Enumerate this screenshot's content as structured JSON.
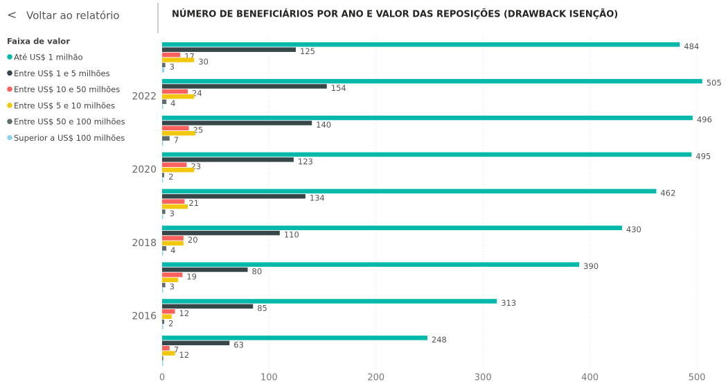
{
  "back_link": "Voltar ao relatório",
  "chart_data": {
    "type": "hbar",
    "title": "NÚMERO DE BENEFICIÁRIOS POR ANO E VALOR DAS REPOSIÇÕES (DRAWBACK ISENÇÃO)",
    "legend_title": "Faixa de valor",
    "legend": "left",
    "categories": [
      null,
      "2022",
      null,
      "2020",
      null,
      "2018",
      null,
      "2016",
      null
    ],
    "series": [
      {
        "name": "Até US$ 1 milhão",
        "color": "#01b8aa",
        "values": [
          484,
          505,
          496,
          495,
          462,
          430,
          390,
          313,
          248
        ]
      },
      {
        "name": "Entre US$ 1 e 5 milhões",
        "color": "#374649",
        "values": [
          125,
          154,
          140,
          123,
          134,
          110,
          80,
          85,
          63
        ]
      },
      {
        "name": "Entre US$ 10 e 50 milhões",
        "color": "#fd625e",
        "values": [
          17,
          24,
          25,
          23,
          21,
          20,
          19,
          12,
          7
        ]
      },
      {
        "name": "Entre US$ 5 e 10 milhões",
        "color": "#f2c80f",
        "values": [
          30,
          30,
          31,
          30,
          24,
          20,
          15,
          9,
          12
        ],
        "value_labels": [
          "30",
          null,
          null,
          null,
          null,
          null,
          null,
          null,
          "12"
        ]
      },
      {
        "name": "Entre US$ 50 e 100 milhões",
        "color": "#5f6b6d",
        "values": [
          3,
          4,
          7,
          2,
          3,
          4,
          3,
          2,
          1
        ],
        "value_labels": [
          "3",
          "4",
          "7",
          "2",
          "3",
          "4",
          "3",
          "2",
          null
        ]
      },
      {
        "name": "Superior a US$ 100 milhões",
        "color": "#8ad4eb",
        "values": [
          2,
          1,
          1,
          1,
          1,
          1,
          1,
          1,
          1
        ],
        "value_labels": [
          null,
          null,
          null,
          null,
          null,
          null,
          null,
          null,
          null
        ]
      }
    ],
    "xlim": [
      0,
      500
    ],
    "xticks": [
      0,
      100,
      200,
      300,
      400,
      500
    ],
    "grid": true
  }
}
